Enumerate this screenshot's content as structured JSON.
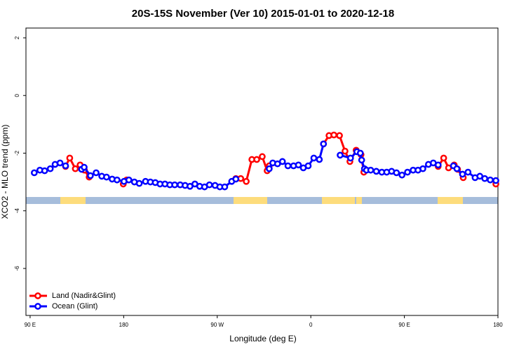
{
  "chart_data": {
    "type": "line",
    "title": "20S-15S November (Ver 10)   2015-01-01 to 2020-12-18",
    "x_label": "Longitude (deg E)",
    "y_label": "XCO2 - MLO trend (ppm)",
    "xlim": [
      86,
      540
    ],
    "ylim": [
      -7.63,
      2.34
    ],
    "xticks": [
      {
        "value": 90,
        "label": "90 E"
      },
      {
        "value": 180,
        "label": "180"
      },
      {
        "value": 270,
        "label": "90 W"
      },
      {
        "value": 360,
        "label": "0"
      },
      {
        "value": 450,
        "label": "90 E"
      },
      {
        "value": 540,
        "label": "180"
      }
    ],
    "yticks": [
      2,
      0,
      -2,
      -4,
      -6
    ],
    "legend": "bottom-left",
    "series": [
      {
        "name": "Land (Nadir&Glint)",
        "color": "#ff0000",
        "x": [
          124.1,
          128.1,
          133.5,
          138.1,
          142.2,
          146.8,
          160,
          179.6,
          182.9,
          240,
          287.9,
          292.6,
          297.9,
          303.3,
          308,
          313.3,
          318,
          320,
          350,
          372.2,
          377.5,
          382.2,
          387.6,
          392.9,
          397.6,
          403.6,
          408.3,
          411,
          450,
          482.5,
          487.8,
          492.5,
          497.9,
          501.2,
          506.6,
          520,
          538
        ],
        "values": [
          -2.46,
          -2.17,
          -2.54,
          -2.41,
          -2.59,
          -2.83,
          null,
          -3.07,
          -2.93,
          null,
          -2.88,
          -2.88,
          -2.98,
          -2.22,
          -2.22,
          -2.12,
          -2.61,
          -2.44,
          null,
          -1.68,
          -1.39,
          -1.37,
          -1.39,
          -1.93,
          -2.29,
          -1.9,
          -2.05,
          -2.66,
          null,
          -2.46,
          -2.17,
          -2.51,
          -2.41,
          -2.56,
          -2.85,
          null,
          -3.07
        ]
      },
      {
        "name": "Ocean (Glint)",
        "color": "#0000ff",
        "x": [
          94,
          99.4,
          104,
          109.4,
          114,
          118.8,
          124.1,
          130,
          139.5,
          142,
          148,
          153.5,
          158.9,
          163.5,
          168.9,
          173.6,
          180.3,
          185,
          190.3,
          195,
          201,
          205.7,
          210.4,
          215,
          219.7,
          224.4,
          229.1,
          234.4,
          239.1,
          243.8,
          248.5,
          253.1,
          257.8,
          262.5,
          267.9,
          272.5,
          277.2,
          283.9,
          287.9,
          300,
          320,
          323.4,
          328,
          332.7,
          338,
          343.4,
          348.1,
          352.8,
          357.5,
          362.9,
          368.2,
          372.2,
          380,
          388.2,
          398.2,
          404.3,
          407.6,
          408.9,
          411.6,
          413.6,
          417.6,
          423,
          428.3,
          433,
          437.7,
          442.4,
          447.7,
          453,
          458.4,
          463.1,
          467.8,
          473.1,
          477.8,
          482.5,
          490,
          497.2,
          500.5,
          505.9,
          511.2,
          518,
          522.6,
          527.3,
          532.6,
          538
        ],
        "values": [
          -2.68,
          -2.59,
          -2.61,
          -2.54,
          -2.39,
          -2.34,
          -2.44,
          null,
          -2.56,
          -2.49,
          -2.78,
          -2.68,
          -2.8,
          -2.83,
          -2.9,
          -2.93,
          -2.98,
          -2.93,
          -3,
          -3.05,
          -2.98,
          -3,
          -3.02,
          -3.07,
          -3.07,
          -3.1,
          -3.1,
          -3.1,
          -3.12,
          -3.15,
          -3.07,
          -3.15,
          -3.17,
          -3.1,
          -3.12,
          -3.17,
          -3.17,
          -2.98,
          -2.9,
          null,
          -2.54,
          -2.34,
          -2.37,
          -2.29,
          -2.44,
          -2.44,
          -2.41,
          -2.51,
          -2.44,
          -2.17,
          -2.22,
          -1.68,
          null,
          -2.07,
          -2.17,
          -1.95,
          -2,
          -2.24,
          -2.54,
          -2.59,
          -2.59,
          -2.63,
          -2.66,
          -2.66,
          -2.63,
          -2.68,
          -2.76,
          -2.66,
          -2.59,
          -2.59,
          -2.54,
          -2.39,
          -2.34,
          -2.41,
          null,
          -2.44,
          -2.54,
          -2.73,
          -2.66,
          -2.85,
          -2.8,
          -2.88,
          -2.93,
          -2.95
        ]
      }
    ]
  }
}
